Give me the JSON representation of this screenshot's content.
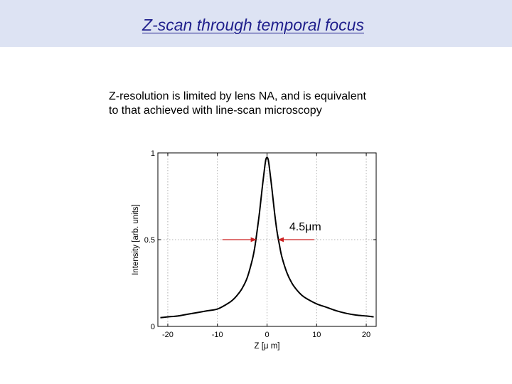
{
  "slide": {
    "title": "Z-scan through temporal focus",
    "caption_line1": "Z-resolution is limited by lens NA, and is equivalent",
    "caption_line2": "to that achieved with line-scan microscopy"
  },
  "chart_data": {
    "type": "line",
    "xlabel": "Z [μ m]",
    "ylabel": "Intensity [arb. units]",
    "xlim": [
      -22,
      22
    ],
    "ylim": [
      0,
      1
    ],
    "xticks": [
      -20,
      -10,
      0,
      10,
      20
    ],
    "xtick_labels": [
      "-20",
      "-10",
      "0",
      "10",
      "20"
    ],
    "yticks": [
      0,
      0.5,
      1
    ],
    "ytick_labels": [
      "0",
      "0.5",
      "1"
    ],
    "grid": true,
    "series": [
      {
        "color": "#000000",
        "x": [
          -21.5,
          -20,
          -18,
          -16,
          -14,
          -12,
          -10,
          -8,
          -7,
          -6,
          -5,
          -4,
          -3,
          -2.5,
          -2,
          -1.5,
          -1,
          -0.5,
          -0.25,
          0,
          0.25,
          0.5,
          1,
          1.5,
          2,
          2.5,
          3,
          4,
          5,
          6,
          7,
          8,
          10,
          12,
          14,
          16,
          18,
          20,
          21.5
        ],
        "y": [
          0.05,
          0.055,
          0.06,
          0.07,
          0.08,
          0.09,
          0.1,
          0.13,
          0.15,
          0.18,
          0.22,
          0.28,
          0.38,
          0.45,
          0.55,
          0.66,
          0.79,
          0.91,
          0.96,
          0.975,
          0.96,
          0.91,
          0.79,
          0.66,
          0.55,
          0.47,
          0.4,
          0.31,
          0.25,
          0.21,
          0.18,
          0.16,
          0.13,
          0.11,
          0.09,
          0.075,
          0.065,
          0.06,
          0.055
        ]
      }
    ],
    "annotations": [
      {
        "text": "4.5μm",
        "arrow_color": "#cc2222",
        "fwhm_left": -2.2,
        "fwhm_right": 2.3,
        "level": 0.5,
        "arrow_from_left": -9,
        "arrow_from_right": 9.5
      }
    ]
  }
}
